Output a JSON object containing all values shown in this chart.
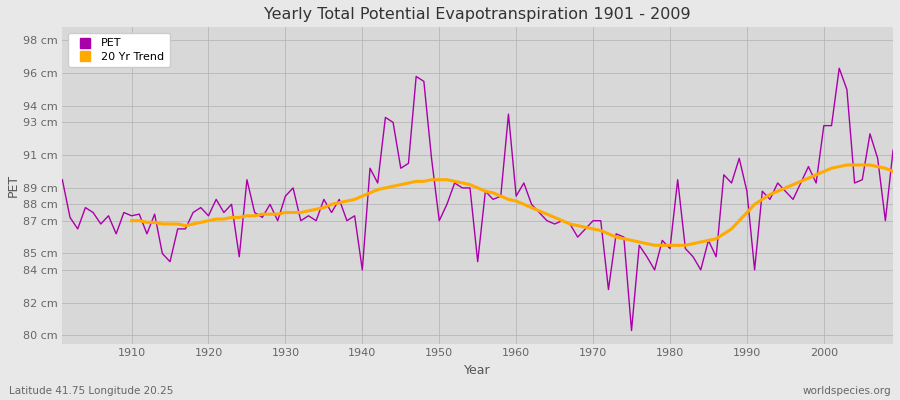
{
  "title": "Yearly Total Potential Evapotranspiration 1901 - 2009",
  "xlabel": "Year",
  "ylabel": "PET",
  "footnote_left": "Latitude 41.75 Longitude 20.25",
  "footnote_right": "worldspecies.org",
  "pet_color": "#aa00aa",
  "trend_color": "#ffaa00",
  "bg_color": "#e8e8e8",
  "plot_bg_color": "#d8d8d8",
  "ylim": [
    79.5,
    98.8
  ],
  "ytick_values": [
    80,
    82,
    84,
    85,
    87,
    88,
    89,
    91,
    93,
    94,
    96,
    98
  ],
  "ytick_labels": [
    "80 cm",
    "82 cm",
    "84 cm",
    "85 cm",
    "87 cm",
    "88 cm",
    "89 cm",
    "91 cm",
    "93 cm",
    "94 cm",
    "96 cm",
    "98 cm"
  ],
  "xlim": [
    1901,
    2009
  ],
  "xticks": [
    1910,
    1920,
    1930,
    1940,
    1950,
    1960,
    1970,
    1980,
    1990,
    2000
  ],
  "years": [
    1901,
    1902,
    1903,
    1904,
    1905,
    1906,
    1907,
    1908,
    1909,
    1910,
    1911,
    1912,
    1913,
    1914,
    1915,
    1916,
    1917,
    1918,
    1919,
    1920,
    1921,
    1922,
    1923,
    1924,
    1925,
    1926,
    1927,
    1928,
    1929,
    1930,
    1931,
    1932,
    1933,
    1934,
    1935,
    1936,
    1937,
    1938,
    1939,
    1940,
    1941,
    1942,
    1943,
    1944,
    1945,
    1946,
    1947,
    1948,
    1949,
    1950,
    1951,
    1952,
    1953,
    1954,
    1955,
    1956,
    1957,
    1958,
    1959,
    1960,
    1961,
    1962,
    1963,
    1964,
    1965,
    1966,
    1967,
    1968,
    1969,
    1970,
    1971,
    1972,
    1973,
    1974,
    1975,
    1976,
    1977,
    1978,
    1979,
    1980,
    1981,
    1982,
    1983,
    1984,
    1985,
    1986,
    1987,
    1988,
    1989,
    1990,
    1991,
    1992,
    1993,
    1994,
    1995,
    1996,
    1997,
    1998,
    1999,
    2000,
    2001,
    2002,
    2003,
    2004,
    2005,
    2006,
    2007,
    2008,
    2009
  ],
  "pet_values": [
    89.5,
    87.2,
    86.5,
    87.8,
    87.5,
    86.8,
    87.3,
    86.2,
    87.5,
    87.3,
    87.4,
    86.2,
    87.4,
    85.0,
    84.5,
    86.5,
    86.5,
    87.5,
    87.8,
    87.3,
    88.3,
    87.5,
    88.0,
    84.8,
    89.5,
    87.5,
    87.2,
    88.0,
    87.0,
    88.5,
    89.0,
    87.0,
    87.3,
    87.0,
    88.3,
    87.5,
    88.3,
    87.0,
    87.3,
    84.0,
    90.2,
    89.3,
    93.3,
    93.0,
    90.2,
    90.5,
    95.8,
    95.5,
    90.8,
    87.0,
    88.0,
    89.3,
    89.0,
    89.0,
    84.5,
    88.8,
    88.3,
    88.5,
    93.5,
    88.5,
    89.3,
    88.0,
    87.5,
    87.0,
    86.8,
    87.0,
    86.8,
    86.0,
    86.5,
    87.0,
    87.0,
    82.8,
    86.2,
    86.0,
    80.3,
    85.5,
    84.8,
    84.0,
    85.8,
    85.3,
    89.5,
    85.3,
    84.8,
    84.0,
    85.8,
    84.8,
    89.8,
    89.3,
    90.8,
    88.8,
    84.0,
    88.8,
    88.3,
    89.3,
    88.8,
    88.3,
    89.3,
    90.3,
    89.3,
    92.8,
    92.8,
    96.3,
    95.0,
    89.3,
    89.5,
    92.3,
    90.8,
    87.0,
    91.3
  ],
  "trend_years": [
    1910,
    1911,
    1912,
    1913,
    1914,
    1915,
    1916,
    1917,
    1918,
    1919,
    1920,
    1921,
    1922,
    1923,
    1924,
    1925,
    1926,
    1927,
    1928,
    1929,
    1930,
    1931,
    1932,
    1933,
    1934,
    1935,
    1936,
    1937,
    1938,
    1939,
    1940,
    1941,
    1942,
    1943,
    1944,
    1945,
    1946,
    1947,
    1948,
    1949,
    1950,
    1951,
    1952,
    1953,
    1954,
    1955,
    1956,
    1957,
    1958,
    1959,
    1960,
    1961,
    1962,
    1963,
    1964,
    1965,
    1966,
    1967,
    1968,
    1969,
    1970,
    1971,
    1972,
    1973,
    1974,
    1975,
    1976,
    1977,
    1978,
    1979,
    1980,
    1981,
    1982,
    1983,
    1984,
    1985,
    1986,
    1987,
    1988,
    1989,
    1990,
    1991,
    1992,
    1993,
    1994,
    1995,
    1996,
    1997,
    1998,
    1999,
    2000,
    2001,
    2002,
    2003,
    2004,
    2005,
    2006,
    2007,
    2008,
    2009
  ],
  "trend_values": [
    87.0,
    87.0,
    86.9,
    86.9,
    86.8,
    86.8,
    86.8,
    86.7,
    86.8,
    86.9,
    87.0,
    87.1,
    87.1,
    87.2,
    87.2,
    87.3,
    87.3,
    87.4,
    87.4,
    87.4,
    87.5,
    87.5,
    87.5,
    87.6,
    87.7,
    87.8,
    88.0,
    88.1,
    88.2,
    88.3,
    88.5,
    88.7,
    88.9,
    89.0,
    89.1,
    89.2,
    89.3,
    89.4,
    89.4,
    89.5,
    89.5,
    89.5,
    89.4,
    89.3,
    89.2,
    89.0,
    88.8,
    88.7,
    88.5,
    88.3,
    88.2,
    88.0,
    87.8,
    87.6,
    87.4,
    87.2,
    87.0,
    86.8,
    86.7,
    86.6,
    86.5,
    86.4,
    86.2,
    86.0,
    85.9,
    85.8,
    85.7,
    85.6,
    85.5,
    85.5,
    85.5,
    85.5,
    85.5,
    85.6,
    85.7,
    85.8,
    85.9,
    86.2,
    86.5,
    87.0,
    87.5,
    88.0,
    88.3,
    88.6,
    88.8,
    89.0,
    89.2,
    89.4,
    89.6,
    89.8,
    90.0,
    90.2,
    90.3,
    90.4,
    90.4,
    90.4,
    90.4,
    90.3,
    90.2,
    90.0
  ]
}
